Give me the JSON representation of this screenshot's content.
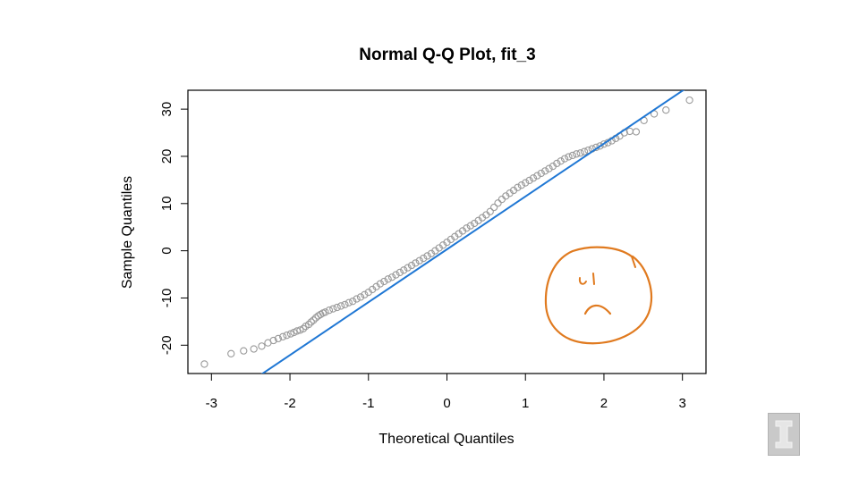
{
  "colors": {
    "background": "#ffffff",
    "frame": "#000000",
    "points": "#9a9a9a",
    "reference_line": "#1f77d4",
    "annotation": "#e07a1f",
    "logo": "#c9c9c9"
  },
  "annotation": {
    "icon": "sad-face-icon"
  },
  "logo": {
    "icon": "illinois-block-i-icon"
  },
  "chart_data": {
    "type": "scatter",
    "title": "Normal Q-Q Plot, fit_3",
    "xlabel": "Theoretical Quantiles",
    "ylabel": "Sample Quantiles",
    "xlim": [
      -3.3,
      3.3
    ],
    "ylim": [
      -26,
      34
    ],
    "xticks": [
      -3,
      -2,
      -1,
      0,
      1,
      2,
      3
    ],
    "xtick_labels": [
      "-3",
      "-2",
      "-1",
      "0",
      "1",
      "2",
      "3"
    ],
    "yticks": [
      -20,
      -10,
      0,
      10,
      20,
      30
    ],
    "ytick_labels": [
      "-20",
      "-10",
      "0",
      "10",
      "20",
      "30"
    ],
    "grid": false,
    "legend": "none",
    "series": [
      {
        "marker": "open-circle",
        "x": [
          -3.09,
          -2.75,
          -2.59,
          -2.46,
          -2.36,
          -2.28,
          -2.21,
          -2.15,
          -2.09,
          -2.04,
          -1.99,
          -1.95,
          -1.91,
          -1.87,
          -1.83,
          -1.8,
          -1.76,
          -1.73,
          -1.7,
          -1.67,
          -1.64,
          -1.61,
          -1.58,
          -1.55,
          -1.5,
          -1.45,
          -1.4,
          -1.35,
          -1.3,
          -1.25,
          -1.2,
          -1.15,
          -1.1,
          -1.05,
          -1.0,
          -0.95,
          -0.9,
          -0.85,
          -0.8,
          -0.75,
          -0.7,
          -0.65,
          -0.6,
          -0.55,
          -0.5,
          -0.45,
          -0.4,
          -0.35,
          -0.3,
          -0.25,
          -0.2,
          -0.15,
          -0.1,
          -0.05,
          0.0,
          0.05,
          0.1,
          0.15,
          0.2,
          0.25,
          0.3,
          0.35,
          0.4,
          0.45,
          0.5,
          0.55,
          0.6,
          0.65,
          0.7,
          0.75,
          0.8,
          0.85,
          0.9,
          0.95,
          1.0,
          1.05,
          1.1,
          1.15,
          1.2,
          1.25,
          1.3,
          1.35,
          1.4,
          1.45,
          1.5,
          1.55,
          1.6,
          1.65,
          1.7,
          1.75,
          1.8,
          1.85,
          1.9,
          1.95,
          2.0,
          2.05,
          2.1,
          2.15,
          2.2,
          2.26,
          2.33,
          2.41,
          2.51,
          2.64,
          2.79,
          3.09
        ],
        "y": [
          -24.0,
          -21.8,
          -21.2,
          -20.8,
          -20.2,
          -19.5,
          -19.0,
          -18.6,
          -18.2,
          -17.9,
          -17.6,
          -17.3,
          -17.0,
          -16.8,
          -16.5,
          -16.0,
          -15.6,
          -15.1,
          -14.7,
          -14.2,
          -13.8,
          -13.5,
          -13.2,
          -13.0,
          -12.6,
          -12.3,
          -12.0,
          -11.7,
          -11.4,
          -11.0,
          -10.7,
          -10.2,
          -9.8,
          -9.3,
          -8.8,
          -8.2,
          -7.6,
          -7.0,
          -6.5,
          -6.0,
          -5.6,
          -5.1,
          -4.6,
          -4.1,
          -3.6,
          -3.1,
          -2.6,
          -2.1,
          -1.6,
          -1.1,
          -0.6,
          0.0,
          0.6,
          1.2,
          1.8,
          2.4,
          3.0,
          3.6,
          4.2,
          4.8,
          5.3,
          5.8,
          6.4,
          7.0,
          7.6,
          8.3,
          9.2,
          10.1,
          10.9,
          11.6,
          12.2,
          12.8,
          13.4,
          13.9,
          14.4,
          14.9,
          15.4,
          15.9,
          16.4,
          16.9,
          17.4,
          17.9,
          18.5,
          19.0,
          19.5,
          19.9,
          20.2,
          20.5,
          20.7,
          21.0,
          21.3,
          21.6,
          21.9,
          22.2,
          22.6,
          22.9,
          23.3,
          23.8,
          24.3,
          25.0,
          25.3,
          25.2,
          27.6,
          29.0,
          29.8,
          31.9
        ]
      }
    ],
    "reference_line": {
      "intercept": 0.3,
      "slope": 11.2
    }
  }
}
